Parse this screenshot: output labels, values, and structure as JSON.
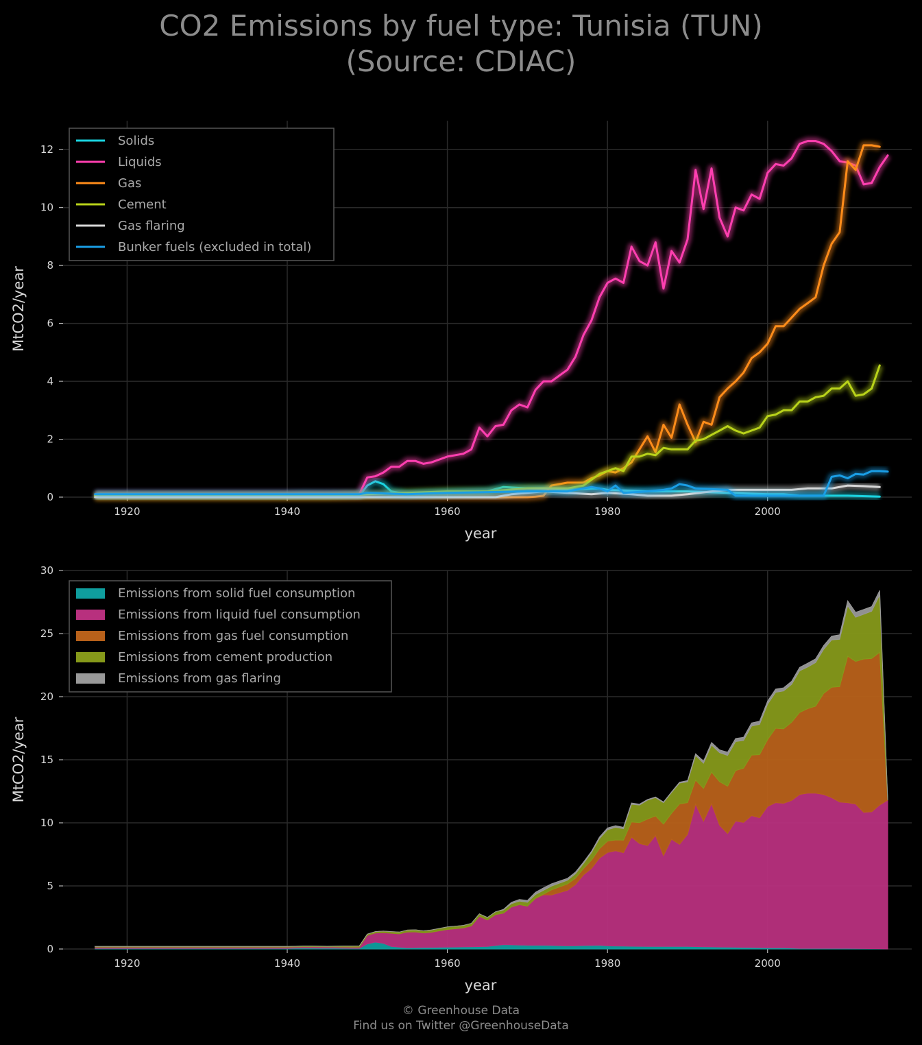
{
  "title": {
    "line1": "CO2 Emissions by fuel type: Tunisia (TUN)",
    "line2": "(Source: CDIAC)"
  },
  "credits": {
    "line1": "© Greenhouse Data",
    "line2": "Find us on Twitter @GreenhouseData"
  },
  "colors": {
    "background": "#000000",
    "grid": "#2a2a2a",
    "text": "#d8d8d8"
  },
  "chart_data": [
    {
      "type": "line",
      "xlabel": "year",
      "ylabel": "MtCO2/year",
      "xlim": [
        1912,
        2018
      ],
      "ylim": [
        0,
        13
      ],
      "xticks": [
        1920,
        1940,
        1960,
        1980,
        2000
      ],
      "yticks": [
        0,
        2,
        4,
        6,
        8,
        10,
        12
      ],
      "grid": true,
      "legend_position": "top-left",
      "series": [
        {
          "name": "Solids",
          "color": "#1ad3e0",
          "points": [
            [
              1916,
              0.05
            ],
            [
              1940,
              0.05
            ],
            [
              1942,
              0.08
            ],
            [
              1949,
              0.05
            ],
            [
              1950,
              0.4
            ],
            [
              1951,
              0.55
            ],
            [
              1952,
              0.45
            ],
            [
              1953,
              0.2
            ],
            [
              1955,
              0.1
            ],
            [
              1960,
              0.15
            ],
            [
              1965,
              0.2
            ],
            [
              1967,
              0.35
            ],
            [
              1970,
              0.3
            ],
            [
              1972,
              0.3
            ],
            [
              1975,
              0.25
            ],
            [
              1979,
              0.3
            ],
            [
              1980,
              0.25
            ],
            [
              1985,
              0.2
            ],
            [
              1990,
              0.2
            ],
            [
              1995,
              0.15
            ],
            [
              2000,
              0.1
            ],
            [
              2002,
              0.1
            ],
            [
              2004,
              0.05
            ],
            [
              2010,
              0.05
            ],
            [
              2014,
              0.02
            ]
          ]
        },
        {
          "name": "Liquids",
          "color": "#ff3fb0",
          "points": [
            [
              1916,
              0.1
            ],
            [
              1948,
              0.1
            ],
            [
              1949,
              0.1
            ],
            [
              1950,
              0.68
            ],
            [
              1951,
              0.72
            ],
            [
              1952,
              0.85
            ],
            [
              1953,
              1.05
            ],
            [
              1954,
              1.05
            ],
            [
              1955,
              1.25
            ],
            [
              1956,
              1.25
            ],
            [
              1957,
              1.15
            ],
            [
              1958,
              1.2
            ],
            [
              1959,
              1.3
            ],
            [
              1960,
              1.4
            ],
            [
              1961,
              1.45
            ],
            [
              1962,
              1.5
            ],
            [
              1963,
              1.65
            ],
            [
              1964,
              2.4
            ],
            [
              1965,
              2.1
            ],
            [
              1966,
              2.45
            ],
            [
              1967,
              2.5
            ],
            [
              1968,
              3.0
            ],
            [
              1969,
              3.2
            ],
            [
              1970,
              3.1
            ],
            [
              1971,
              3.7
            ],
            [
              1972,
              4.0
            ],
            [
              1973,
              4.0
            ],
            [
              1974,
              4.2
            ],
            [
              1975,
              4.4
            ],
            [
              1976,
              4.85
            ],
            [
              1977,
              5.6
            ],
            [
              1978,
              6.1
            ],
            [
              1979,
              6.9
            ],
            [
              1980,
              7.4
            ],
            [
              1981,
              7.55
            ],
            [
              1982,
              7.4
            ],
            [
              1983,
              8.65
            ],
            [
              1984,
              8.15
            ],
            [
              1985,
              8.0
            ],
            [
              1986,
              8.8
            ],
            [
              1987,
              7.2
            ],
            [
              1988,
              8.5
            ],
            [
              1989,
              8.1
            ],
            [
              1990,
              8.9
            ],
            [
              1991,
              11.3
            ],
            [
              1992,
              9.95
            ],
            [
              1993,
              11.35
            ],
            [
              1994,
              9.65
            ],
            [
              1995,
              9.0
            ],
            [
              1996,
              10.0
            ],
            [
              1997,
              9.9
            ],
            [
              1998,
              10.45
            ],
            [
              1999,
              10.3
            ],
            [
              2000,
              11.2
            ],
            [
              2001,
              11.5
            ],
            [
              2002,
              11.45
            ],
            [
              2003,
              11.7
            ],
            [
              2004,
              12.2
            ],
            [
              2005,
              12.3
            ],
            [
              2006,
              12.3
            ],
            [
              2007,
              12.2
            ],
            [
              2008,
              11.95
            ],
            [
              2009,
              11.6
            ],
            [
              2010,
              11.55
            ],
            [
              2011,
              11.45
            ],
            [
              2012,
              10.8
            ],
            [
              2013,
              10.85
            ],
            [
              2014,
              11.4
            ],
            [
              2015,
              11.8
            ]
          ]
        },
        {
          "name": "Gas",
          "color": "#ff8c1a",
          "points": [
            [
              1916,
              0.0
            ],
            [
              1970,
              0.0
            ],
            [
              1971,
              0.02
            ],
            [
              1972,
              0.05
            ],
            [
              1973,
              0.4
            ],
            [
              1974,
              0.45
            ],
            [
              1975,
              0.5
            ],
            [
              1976,
              0.5
            ],
            [
              1977,
              0.5
            ],
            [
              1978,
              0.65
            ],
            [
              1979,
              0.75
            ],
            [
              1980,
              0.9
            ],
            [
              1981,
              0.85
            ],
            [
              1982,
              1.0
            ],
            [
              1983,
              1.2
            ],
            [
              1984,
              1.65
            ],
            [
              1985,
              2.1
            ],
            [
              1986,
              1.55
            ],
            [
              1987,
              2.5
            ],
            [
              1988,
              2.05
            ],
            [
              1989,
              3.2
            ],
            [
              1990,
              2.5
            ],
            [
              1991,
              1.9
            ],
            [
              1992,
              2.6
            ],
            [
              1993,
              2.5
            ],
            [
              1994,
              3.45
            ],
            [
              1995,
              3.75
            ],
            [
              1996,
              4.0
            ],
            [
              1997,
              4.3
            ],
            [
              1998,
              4.8
            ],
            [
              1999,
              5.0
            ],
            [
              2000,
              5.3
            ],
            [
              2001,
              5.9
            ],
            [
              2002,
              5.9
            ],
            [
              2003,
              6.2
            ],
            [
              2004,
              6.5
            ],
            [
              2005,
              6.7
            ],
            [
              2006,
              6.9
            ],
            [
              2007,
              8.0
            ],
            [
              2008,
              8.75
            ],
            [
              2009,
              9.15
            ],
            [
              2010,
              11.6
            ],
            [
              2011,
              11.3
            ],
            [
              2012,
              12.15
            ],
            [
              2013,
              12.15
            ],
            [
              2014,
              12.1
            ]
          ]
        },
        {
          "name": "Cement",
          "color": "#b9d31a",
          "points": [
            [
              1916,
              0.05
            ],
            [
              1945,
              0.05
            ],
            [
              1950,
              0.1
            ],
            [
              1955,
              0.15
            ],
            [
              1960,
              0.2
            ],
            [
              1965,
              0.2
            ],
            [
              1970,
              0.3
            ],
            [
              1975,
              0.3
            ],
            [
              1977,
              0.4
            ],
            [
              1978,
              0.6
            ],
            [
              1979,
              0.8
            ],
            [
              1980,
              0.9
            ],
            [
              1981,
              1.0
            ],
            [
              1982,
              0.9
            ],
            [
              1983,
              1.4
            ],
            [
              1984,
              1.4
            ],
            [
              1985,
              1.5
            ],
            [
              1986,
              1.45
            ],
            [
              1987,
              1.7
            ],
            [
              1988,
              1.65
            ],
            [
              1989,
              1.65
            ],
            [
              1990,
              1.65
            ],
            [
              1991,
              1.95
            ],
            [
              1992,
              2.0
            ],
            [
              1993,
              2.15
            ],
            [
              1994,
              2.3
            ],
            [
              1995,
              2.45
            ],
            [
              1996,
              2.3
            ],
            [
              1997,
              2.2
            ],
            [
              1998,
              2.3
            ],
            [
              1999,
              2.4
            ],
            [
              2000,
              2.8
            ],
            [
              2001,
              2.85
            ],
            [
              2002,
              3.0
            ],
            [
              2003,
              3.0
            ],
            [
              2004,
              3.3
            ],
            [
              2005,
              3.3
            ],
            [
              2006,
              3.45
            ],
            [
              2007,
              3.5
            ],
            [
              2008,
              3.75
            ],
            [
              2009,
              3.75
            ],
            [
              2010,
              4.0
            ],
            [
              2011,
              3.5
            ],
            [
              2012,
              3.55
            ],
            [
              2013,
              3.75
            ],
            [
              2014,
              4.55
            ]
          ]
        },
        {
          "name": "Gas flaring",
          "color": "#d8d8d8",
          "points": [
            [
              1916,
              0.0
            ],
            [
              1966,
              0.0
            ],
            [
              1968,
              0.1
            ],
            [
              1970,
              0.15
            ],
            [
              1972,
              0.2
            ],
            [
              1975,
              0.15
            ],
            [
              1978,
              0.1
            ],
            [
              1980,
              0.15
            ],
            [
              1983,
              0.1
            ],
            [
              1985,
              0.05
            ],
            [
              1988,
              0.05
            ],
            [
              1990,
              0.1
            ],
            [
              1993,
              0.2
            ],
            [
              1995,
              0.25
            ],
            [
              2000,
              0.25
            ],
            [
              2003,
              0.25
            ],
            [
              2005,
              0.3
            ],
            [
              2008,
              0.3
            ],
            [
              2010,
              0.4
            ],
            [
              2012,
              0.38
            ],
            [
              2014,
              0.35
            ]
          ]
        },
        {
          "name": "Bunker fuels (excluded in total)",
          "color": "#1a9ee6",
          "points": [
            [
              1916,
              0.1
            ],
            [
              1949,
              0.1
            ],
            [
              1950,
              0.15
            ],
            [
              1955,
              0.1
            ],
            [
              1960,
              0.15
            ],
            [
              1970,
              0.2
            ],
            [
              1975,
              0.2
            ],
            [
              1978,
              0.35
            ],
            [
              1979,
              0.3
            ],
            [
              1980,
              0.2
            ],
            [
              1981,
              0.4
            ],
            [
              1982,
              0.15
            ],
            [
              1985,
              0.2
            ],
            [
              1987,
              0.25
            ],
            [
              1988,
              0.3
            ],
            [
              1989,
              0.45
            ],
            [
              1990,
              0.4
            ],
            [
              1991,
              0.3
            ],
            [
              1995,
              0.25
            ],
            [
              1996,
              0.05
            ],
            [
              2000,
              0.05
            ],
            [
              2006,
              0.05
            ],
            [
              2007,
              0.05
            ],
            [
              2008,
              0.7
            ],
            [
              2009,
              0.75
            ],
            [
              2010,
              0.65
            ],
            [
              2011,
              0.8
            ],
            [
              2012,
              0.78
            ],
            [
              2013,
              0.9
            ],
            [
              2014,
              0.9
            ],
            [
              2015,
              0.88
            ]
          ]
        }
      ]
    },
    {
      "type": "area",
      "stacked": true,
      "xlabel": "year",
      "ylabel": "MtCO2/year",
      "xlim": [
        1912,
        2018
      ],
      "ylim": [
        0,
        30
      ],
      "xticks": [
        1920,
        1940,
        1960,
        1980,
        2000
      ],
      "yticks": [
        0,
        5,
        10,
        15,
        20,
        25,
        30
      ],
      "grid": true,
      "legend_position": "top-left",
      "series": [
        {
          "name": "Emissions from solid fuel consumption",
          "color": "#0f9e9e",
          "source": "Solids"
        },
        {
          "name": "Emissions from liquid fuel consumption",
          "color": "#b8307e",
          "source": "Liquids"
        },
        {
          "name": "Emissions from gas fuel consumption",
          "color": "#b8611a",
          "source": "Gas"
        },
        {
          "name": "Emissions from cement production",
          "color": "#86991a",
          "source": "Cement"
        },
        {
          "name": "Emissions from gas flaring",
          "color": "#999999",
          "source": "Gas flaring"
        }
      ]
    }
  ]
}
